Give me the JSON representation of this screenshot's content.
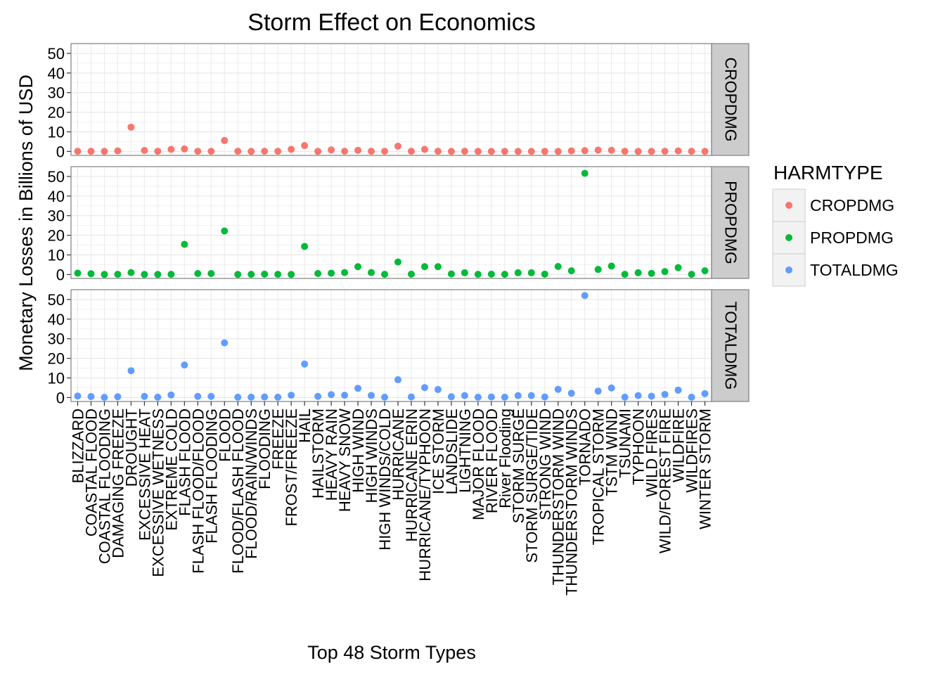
{
  "chart_data": {
    "type": "scatter",
    "title": "Storm Effect on Economics",
    "xlabel": "Top 48 Storm Types",
    "ylabel": "Monetary Losses in Billions of USD",
    "ylim": [
      -2,
      55
    ],
    "y_ticks": [
      0,
      10,
      20,
      30,
      40,
      50
    ],
    "grid": true,
    "legend": {
      "title": "HARMTYPE",
      "position": "right"
    },
    "categories": [
      "BLIZZARD",
      "COASTAL FLOOD",
      "COASTAL FLOODING",
      "DAMAGING FREEZE",
      "DROUGHT",
      "EXCESSIVE HEAT",
      "EXCESSIVE WETNESS",
      "EXTREME COLD",
      "FLASH FLOOD",
      "FLASH FLOOD/FLOOD",
      "FLASH FLOODING",
      "FLOOD",
      "FLOOD/FLASH FLOOD",
      "FLOOD/RAIN/WINDS",
      "FLOODING",
      "FREEZE",
      "FROST/FREEZE",
      "HAIL",
      "HAILSTORM",
      "HEAVY RAIN",
      "HEAVY SNOW",
      "HIGH WIND",
      "HIGH WINDS",
      "HIGH WINDS/COLD",
      "HURRICANE",
      "HURRICANE ERIN",
      "HURRICANE/TYPHOON",
      "ICE STORM",
      "LANDSLIDE",
      "LIGHTNING",
      "MAJOR FLOOD",
      "RIVER FLOOD",
      "River Flooding",
      "STORM SURGE",
      "STORM SURGE/TIDE",
      "STRONG WIND",
      "THUNDERSTORM WIND",
      "THUNDERSTORM WINDS",
      "TORNADO",
      "TROPICAL STORM",
      "TSTM WIND",
      "TSUNAMI",
      "TYPHOON",
      "WILD FIRES",
      "WILD/FOREST FIRE",
      "WILDFIRE",
      "WILDFIRES",
      "WINTER STORM"
    ],
    "series": [
      {
        "name": "CROPDMG",
        "color": "#F8766D",
        "values": [
          0.1,
          0.1,
          0.05,
          0.3,
          12.4,
          0.5,
          0.1,
          1.1,
          1.3,
          0.1,
          0.1,
          5.6,
          0.1,
          0.05,
          0.1,
          0.1,
          1.1,
          3.0,
          0.05,
          0.8,
          0.1,
          0.6,
          0.1,
          0.1,
          2.7,
          0.1,
          1.1,
          0.1,
          0.05,
          0.1,
          0.05,
          0.05,
          0.05,
          0.05,
          0.05,
          0.05,
          0.05,
          0.3,
          0.4,
          0.7,
          0.6,
          0.1,
          0.05,
          0.05,
          0.1,
          0.3,
          0.1,
          0.05
        ]
      },
      {
        "name": "PROPDMG",
        "color": "#00BA38",
        "values": [
          0.7,
          0.4,
          0.05,
          0.1,
          1.0,
          0.05,
          0.05,
          0.1,
          15.4,
          0.5,
          0.5,
          22.2,
          0.05,
          0.1,
          0.2,
          0.1,
          0.05,
          14.3,
          0.5,
          0.7,
          1.0,
          4.0,
          1.0,
          0.1,
          6.4,
          0.2,
          4.0,
          4.0,
          0.3,
          0.9,
          0.1,
          0.2,
          0.1,
          0.9,
          0.9,
          0.2,
          4.1,
          1.9,
          51.6,
          2.6,
          4.3,
          0.1,
          0.9,
          0.6,
          1.5,
          3.5,
          0.1,
          1.9
        ]
      },
      {
        "name": "TOTALDMG",
        "color": "#619CFF",
        "values": [
          0.8,
          0.5,
          0.1,
          0.4,
          13.7,
          0.6,
          0.2,
          1.3,
          16.6,
          0.6,
          0.6,
          27.9,
          0.2,
          0.2,
          0.3,
          0.2,
          1.2,
          17.1,
          0.6,
          1.5,
          1.2,
          4.7,
          1.1,
          0.2,
          9.1,
          0.3,
          5.1,
          4.1,
          0.4,
          1.0,
          0.2,
          0.3,
          0.2,
          1.0,
          1.0,
          0.3,
          4.2,
          2.2,
          52.0,
          3.3,
          4.9,
          0.2,
          1.0,
          0.7,
          1.6,
          3.8,
          0.2,
          2.0
        ]
      }
    ]
  }
}
